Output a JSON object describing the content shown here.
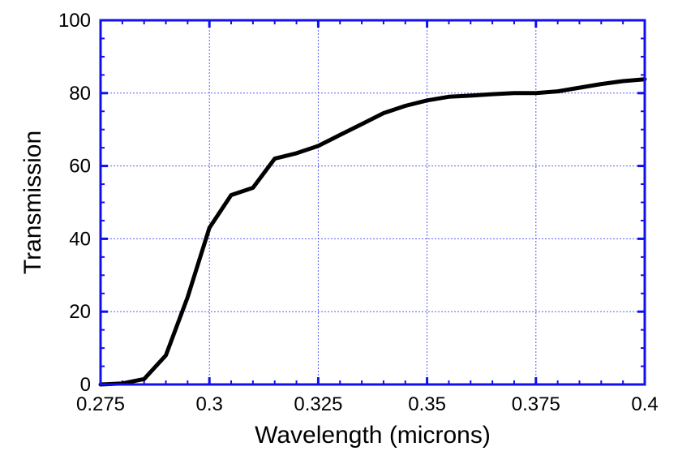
{
  "chart_data": {
    "type": "line",
    "title": "",
    "xlabel": "Wavelength (microns)",
    "ylabel": "Transmission",
    "xlim": [
      0.275,
      0.4
    ],
    "ylim": [
      0,
      100
    ],
    "grid": true,
    "x_ticks": [
      0.275,
      0.3,
      0.325,
      0.35,
      0.375,
      0.4
    ],
    "x_tick_labels": [
      "0.275",
      "0.3",
      "0.325",
      "0.35",
      "0.375",
      "0.4"
    ],
    "y_ticks": [
      0,
      20,
      40,
      60,
      80,
      100
    ],
    "y_tick_labels": [
      "0",
      "20",
      "40",
      "60",
      "80",
      "100"
    ],
    "colors": {
      "frame": "#1010ee",
      "grid": "#5a5aff",
      "line": "#000000"
    },
    "series": [
      {
        "x": [
          0.275,
          0.28,
          0.285,
          0.29,
          0.295,
          0.3,
          0.305,
          0.31,
          0.315,
          0.32,
          0.325,
          0.33,
          0.335,
          0.34,
          0.345,
          0.35,
          0.355,
          0.36,
          0.365,
          0.37,
          0.375,
          0.38,
          0.385,
          0.39,
          0.395,
          0.4
        ],
        "y": [
          0,
          0.3,
          1.5,
          8,
          24,
          43,
          52,
          54,
          62,
          63.5,
          65.5,
          68.5,
          71.5,
          74.5,
          76.5,
          78,
          79,
          79.3,
          79.7,
          80,
          80,
          80.5,
          81.5,
          82.5,
          83.3,
          83.8
        ]
      }
    ]
  }
}
